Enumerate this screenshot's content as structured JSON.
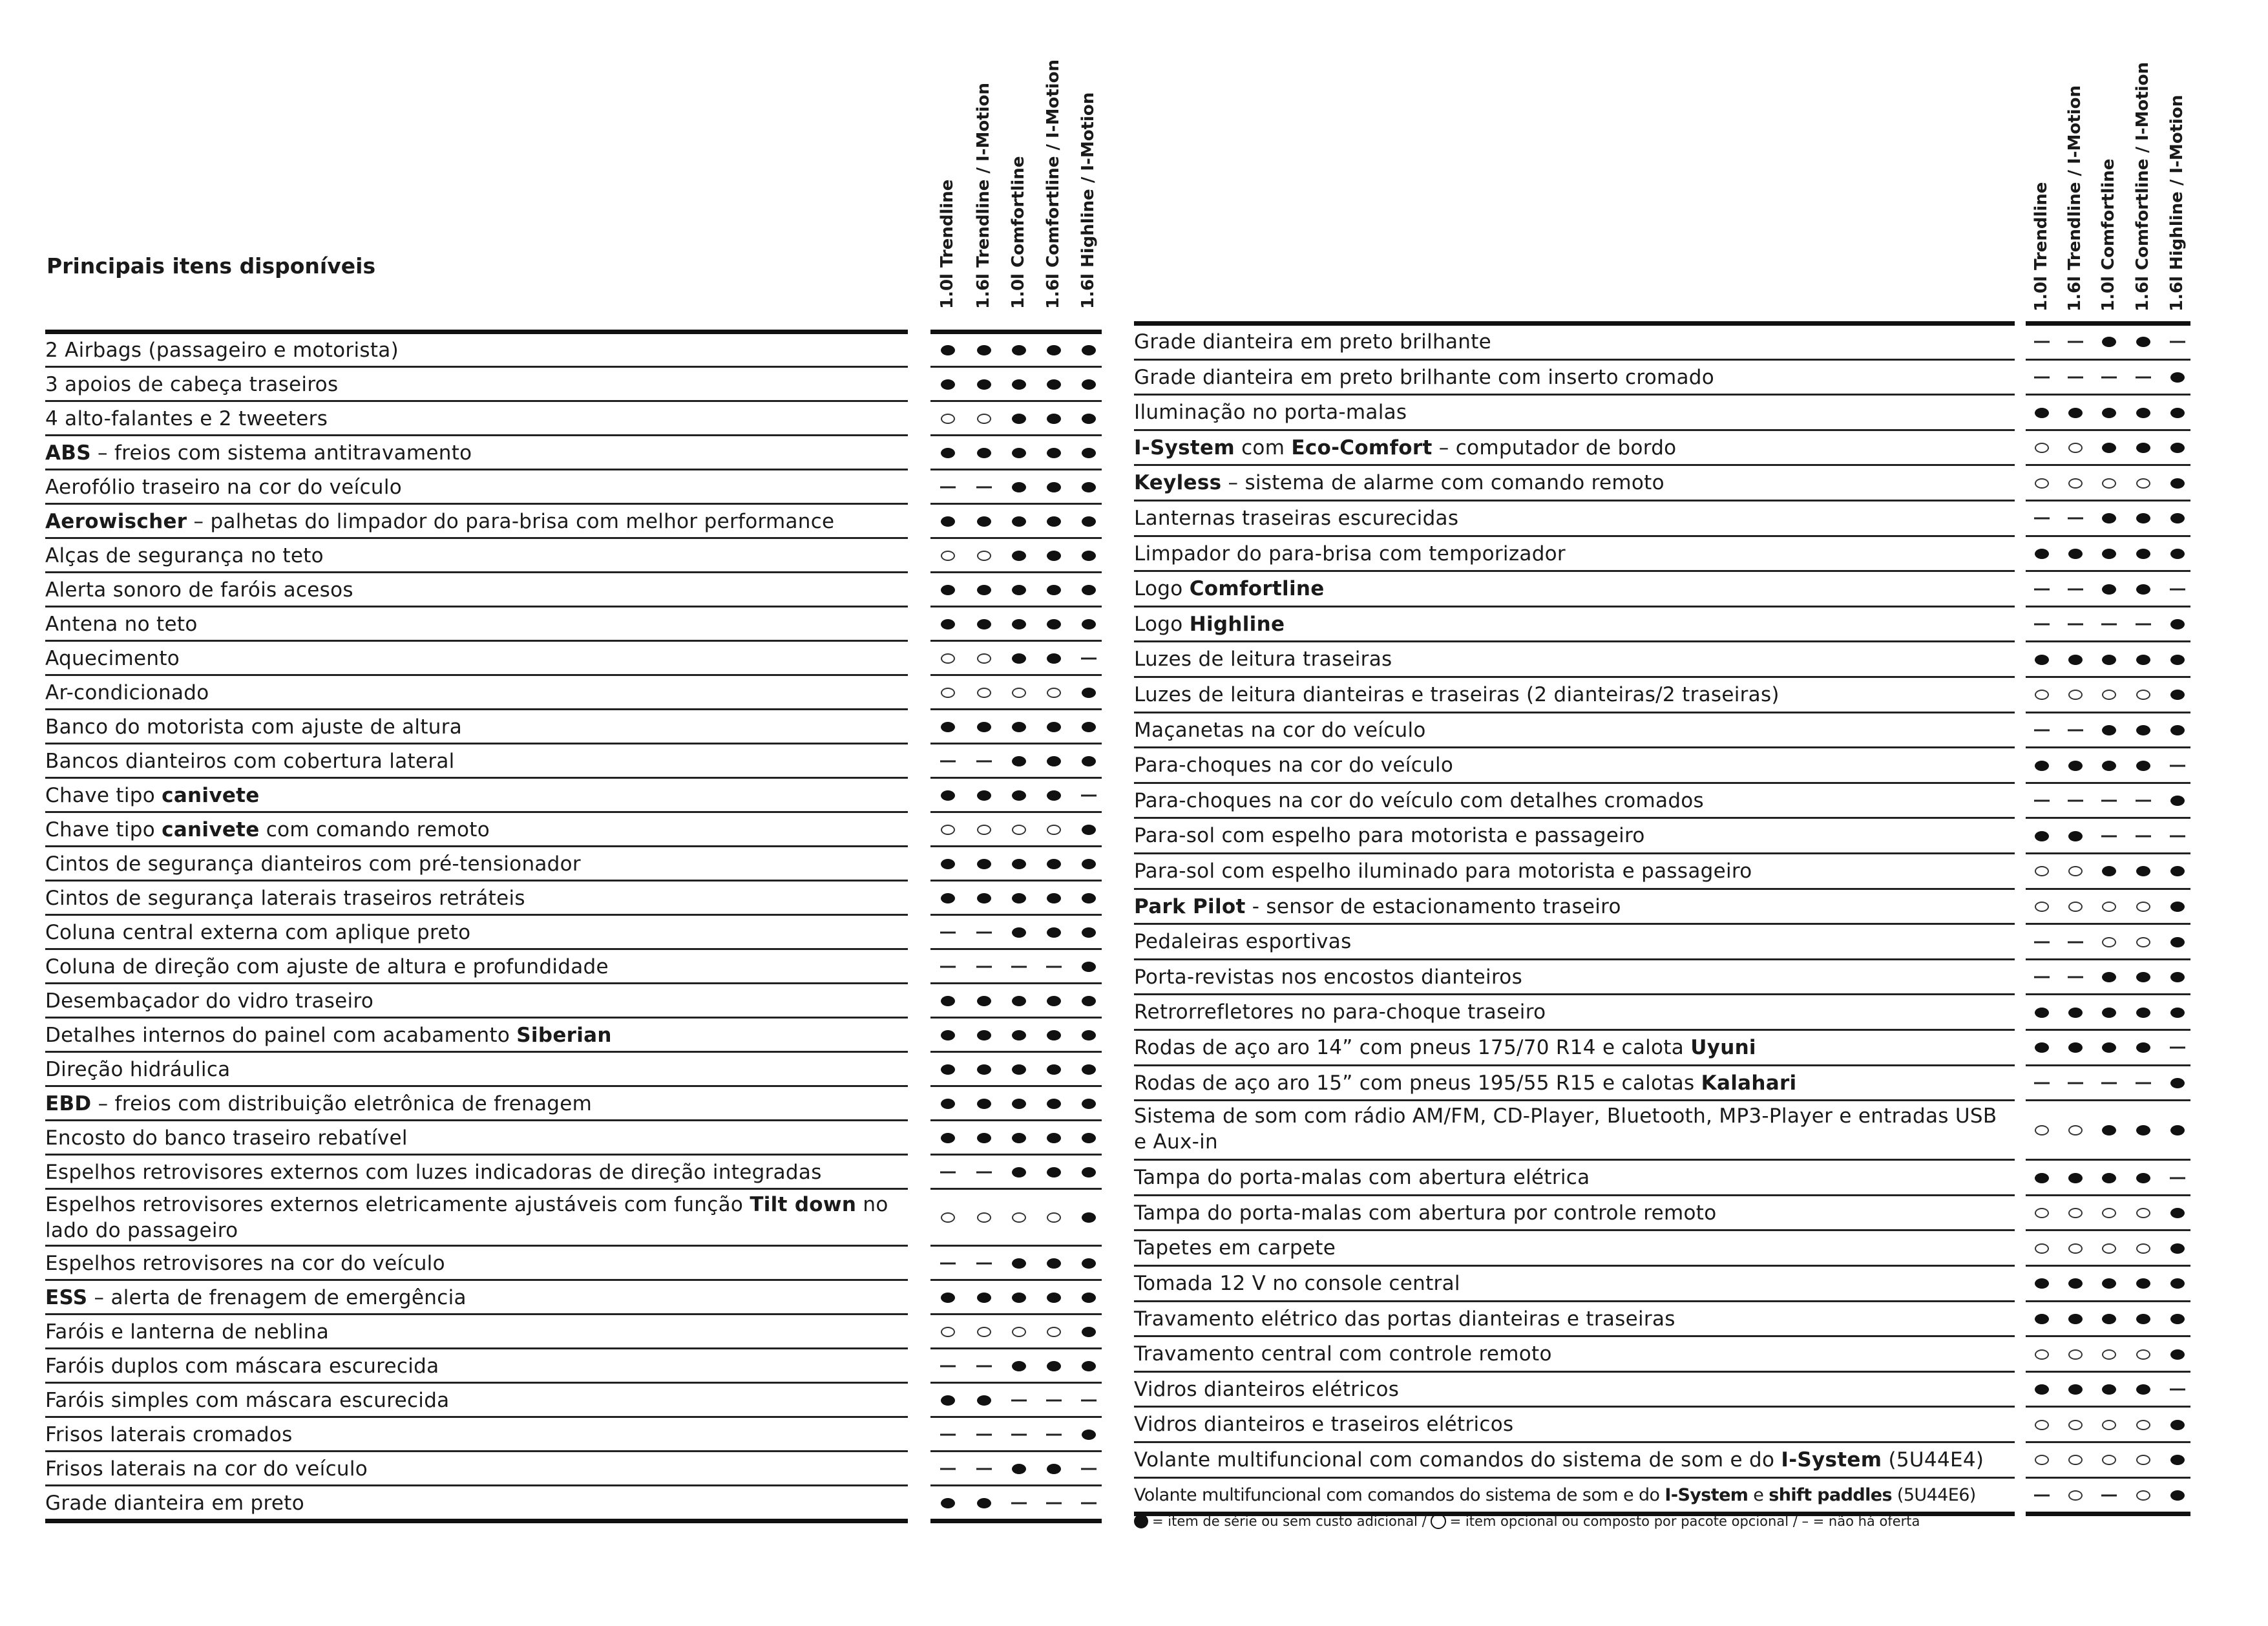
{
  "title": "Principais itens disponíveis",
  "columns": [
    "1.0l Trendline",
    "1.6l Trendline / I-Motion",
    "1.0l Comfortline",
    "1.6l Comfortline / I-Motion",
    "1.6l Highline / I-Motion"
  ],
  "symbol_legend": {
    "F": "filled-dot",
    "O": "open-circle",
    "-": "dash"
  },
  "left": {
    "rows": [
      {
        "parts": [
          {
            "t": "2 Airbags (passageiro e motorista)"
          }
        ],
        "v": "FFFFF"
      },
      {
        "parts": [
          {
            "t": "3 apoios de cabeça traseiros"
          }
        ],
        "v": "FFFFF"
      },
      {
        "parts": [
          {
            "t": "4 alto-falantes e 2 tweeters"
          }
        ],
        "v": "OOFFF"
      },
      {
        "parts": [
          {
            "t": "ABS",
            "b": true
          },
          {
            "t": " – freios com sistema antitravamento"
          }
        ],
        "v": "FFFFF"
      },
      {
        "parts": [
          {
            "t": "Aerofólio traseiro na cor do veículo"
          }
        ],
        "v": "--FFF"
      },
      {
        "parts": [
          {
            "t": "Aerowischer",
            "b": true
          },
          {
            "t": " – palhetas do limpador do para-brisa com melhor performance"
          }
        ],
        "v": "FFFFF"
      },
      {
        "parts": [
          {
            "t": "Alças de segurança no teto"
          }
        ],
        "v": "OOFFF"
      },
      {
        "parts": [
          {
            "t": "Alerta sonoro de faróis acesos"
          }
        ],
        "v": "FFFFF"
      },
      {
        "parts": [
          {
            "t": "Antena no teto"
          }
        ],
        "v": "FFFFF"
      },
      {
        "parts": [
          {
            "t": "Aquecimento"
          }
        ],
        "v": "OOFF-"
      },
      {
        "parts": [
          {
            "t": "Ar-condicionado"
          }
        ],
        "v": "OOOOF"
      },
      {
        "parts": [
          {
            "t": "Banco do motorista com ajuste de altura"
          }
        ],
        "v": "FFFFF"
      },
      {
        "parts": [
          {
            "t": "Bancos dianteiros com cobertura lateral"
          }
        ],
        "v": "--FFF"
      },
      {
        "parts": [
          {
            "t": "Chave tipo "
          },
          {
            "t": "canivete",
            "b": true
          }
        ],
        "v": "FFFF-"
      },
      {
        "parts": [
          {
            "t": "Chave tipo "
          },
          {
            "t": "canivete",
            "b": true
          },
          {
            "t": " com comando remoto"
          }
        ],
        "v": "OOOOF"
      },
      {
        "parts": [
          {
            "t": "Cintos de segurança dianteiros com pré-tensionador"
          }
        ],
        "v": "FFFFF"
      },
      {
        "parts": [
          {
            "t": "Cintos de segurança laterais traseiros retráteis"
          }
        ],
        "v": "FFFFF"
      },
      {
        "parts": [
          {
            "t": "Coluna central externa com aplique preto"
          }
        ],
        "v": "--FFF"
      },
      {
        "parts": [
          {
            "t": "Coluna de direção com ajuste de altura e profundidade"
          }
        ],
        "v": "----F"
      },
      {
        "parts": [
          {
            "t": "Desembaçador do vidro traseiro"
          }
        ],
        "v": "FFFFF"
      },
      {
        "parts": [
          {
            "t": "Detalhes internos do painel com acabamento "
          },
          {
            "t": "Siberian",
            "b": true
          }
        ],
        "v": "FFFFF"
      },
      {
        "parts": [
          {
            "t": "Direção hidráulica"
          }
        ],
        "v": "FFFFF"
      },
      {
        "parts": [
          {
            "t": "EBD",
            "b": true
          },
          {
            "t": " – freios com distribuição eletrônica de frenagem"
          }
        ],
        "v": "FFFFF"
      },
      {
        "parts": [
          {
            "t": "Encosto do banco traseiro rebatível"
          }
        ],
        "v": "FFFFF"
      },
      {
        "parts": [
          {
            "t": "Espelhos retrovisores externos com luzes indicadoras de direção integradas"
          }
        ],
        "v": "--FFF"
      },
      {
        "parts": [
          {
            "t": "Espelhos retrovisores externos eletricamente ajustáveis com função "
          },
          {
            "t": "Tilt down",
            "b": true
          },
          {
            "t": " no lado do passageiro"
          }
        ],
        "v": "OOOOF",
        "tall": true
      },
      {
        "parts": [
          {
            "t": "Espelhos retrovisores na cor do veículo"
          }
        ],
        "v": "--FFF"
      },
      {
        "parts": [
          {
            "t": "ESS",
            "b": true
          },
          {
            "t": " – alerta de frenagem de emergência"
          }
        ],
        "v": "FFFFF"
      },
      {
        "parts": [
          {
            "t": "Faróis e lanterna de neblina"
          }
        ],
        "v": "OOOOF"
      },
      {
        "parts": [
          {
            "t": "Faróis duplos com máscara escurecida"
          }
        ],
        "v": "--FFF"
      },
      {
        "parts": [
          {
            "t": "Faróis simples com máscara escurecida"
          }
        ],
        "v": "FF---"
      },
      {
        "parts": [
          {
            "t": "Frisos laterais cromados"
          }
        ],
        "v": "----F"
      },
      {
        "parts": [
          {
            "t": "Frisos laterais na cor do veículo"
          }
        ],
        "v": "--FF-"
      },
      {
        "parts": [
          {
            "t": "Grade dianteira em preto"
          }
        ],
        "v": "FF---"
      }
    ]
  },
  "right": {
    "rows": [
      {
        "parts": [
          {
            "t": "Grade dianteira em preto brilhante"
          }
        ],
        "v": "--FF-"
      },
      {
        "parts": [
          {
            "t": "Grade dianteira em preto brilhante com inserto cromado"
          }
        ],
        "v": "----F"
      },
      {
        "parts": [
          {
            "t": "Iluminação no porta-malas"
          }
        ],
        "v": "FFFFF"
      },
      {
        "parts": [
          {
            "t": "I-System",
            "b": true
          },
          {
            "t": " com "
          },
          {
            "t": "Eco-Comfort",
            "b": true
          },
          {
            "t": " – computador de bordo"
          }
        ],
        "v": "OOFFF"
      },
      {
        "parts": [
          {
            "t": "Keyless",
            "b": true
          },
          {
            "t": " – sistema de alarme com comando remoto"
          }
        ],
        "v": "OOOOF"
      },
      {
        "parts": [
          {
            "t": "Lanternas traseiras escurecidas"
          }
        ],
        "v": "--FFF"
      },
      {
        "parts": [
          {
            "t": "Limpador do para-brisa com temporizador"
          }
        ],
        "v": "FFFFF"
      },
      {
        "parts": [
          {
            "t": "Logo "
          },
          {
            "t": "Comfortline",
            "b": true
          }
        ],
        "v": "--FF-"
      },
      {
        "parts": [
          {
            "t": "Logo "
          },
          {
            "t": "Highline",
            "b": true
          }
        ],
        "v": "----F"
      },
      {
        "parts": [
          {
            "t": "Luzes de leitura traseiras"
          }
        ],
        "v": "FFFFF"
      },
      {
        "parts": [
          {
            "t": "Luzes de leitura dianteiras e traseiras (2 dianteiras/2 traseiras)"
          }
        ],
        "v": "OOOOF"
      },
      {
        "parts": [
          {
            "t": "Maçanetas na cor do veículo"
          }
        ],
        "v": "--FFF"
      },
      {
        "parts": [
          {
            "t": "Para-choques na cor do veículo"
          }
        ],
        "v": "FFFF-"
      },
      {
        "parts": [
          {
            "t": "Para-choques na cor do veículo com detalhes cromados"
          }
        ],
        "v": "----F"
      },
      {
        "parts": [
          {
            "t": "Para-sol com espelho para motorista e passageiro"
          }
        ],
        "v": "FF---"
      },
      {
        "parts": [
          {
            "t": "Para-sol com espelho iluminado para motorista e passageiro"
          }
        ],
        "v": "OOFFF"
      },
      {
        "parts": [
          {
            "t": "Park Pilot",
            "b": true
          },
          {
            "t": " - sensor de estacionamento traseiro"
          }
        ],
        "v": "OOOOF"
      },
      {
        "parts": [
          {
            "t": "Pedaleiras esportivas"
          }
        ],
        "v": "--OOF"
      },
      {
        "parts": [
          {
            "t": "Porta-revistas nos encostos dianteiros"
          }
        ],
        "v": "--FFF"
      },
      {
        "parts": [
          {
            "t": "Retrorrefletores no para-choque traseiro"
          }
        ],
        "v": "FFFFF"
      },
      {
        "parts": [
          {
            "t": "Rodas de aço aro 14” com pneus 175/70 R14 e calota "
          },
          {
            "t": "Uyuni",
            "b": true
          }
        ],
        "v": "FFFF-"
      },
      {
        "parts": [
          {
            "t": "Rodas de aço aro 15” com pneus 195/55 R15 e calotas "
          },
          {
            "t": "Kalahari",
            "b": true
          }
        ],
        "v": "----F"
      },
      {
        "parts": [
          {
            "t": "Sistema de som com rádio AM/FM, CD-Player, Bluetooth, MP3-Player e entradas USB e Aux-in"
          }
        ],
        "v": "OOFFF",
        "tall": true
      },
      {
        "parts": [
          {
            "t": "Tampa do porta-malas com abertura elétrica"
          }
        ],
        "v": "FFFF-"
      },
      {
        "parts": [
          {
            "t": "Tampa do porta-malas com abertura por controle remoto"
          }
        ],
        "v": "OOOOF"
      },
      {
        "parts": [
          {
            "t": "Tapetes em carpete"
          }
        ],
        "v": "OOOOF"
      },
      {
        "parts": [
          {
            "t": "Tomada 12 V no console central"
          }
        ],
        "v": "FFFFF"
      },
      {
        "parts": [
          {
            "t": "Travamento elétrico das portas dianteiras e traseiras"
          }
        ],
        "v": "FFFFF"
      },
      {
        "parts": [
          {
            "t": "Travamento central com controle remoto"
          }
        ],
        "v": "OOOOF"
      },
      {
        "parts": [
          {
            "t": "Vidros dianteiros elétricos"
          }
        ],
        "v": "FFFF-"
      },
      {
        "parts": [
          {
            "t": "Vidros dianteiros e traseiros elétricos"
          }
        ],
        "v": "OOOOF"
      },
      {
        "parts": [
          {
            "t": "Volante multifuncional com comandos do sistema de som e do "
          },
          {
            "t": "I-System",
            "b": true
          },
          {
            "t": " (5U44E4)"
          }
        ],
        "v": "OOOOF"
      },
      {
        "parts": [
          {
            "t": "Volante multifuncional com comandos do sistema de som e do "
          },
          {
            "t": "I-System",
            "b": true
          },
          {
            "t": " e "
          },
          {
            "t": "shift paddles",
            "b": true
          },
          {
            "t": " (5U44E6)"
          }
        ],
        "v": "-O-OF",
        "condensed": true
      }
    ]
  },
  "legend": {
    "standard": "= item de série ou sem custo adicional /",
    "optional": "= item opcional ou composto por pacote opcional / – = não há oferta"
  }
}
